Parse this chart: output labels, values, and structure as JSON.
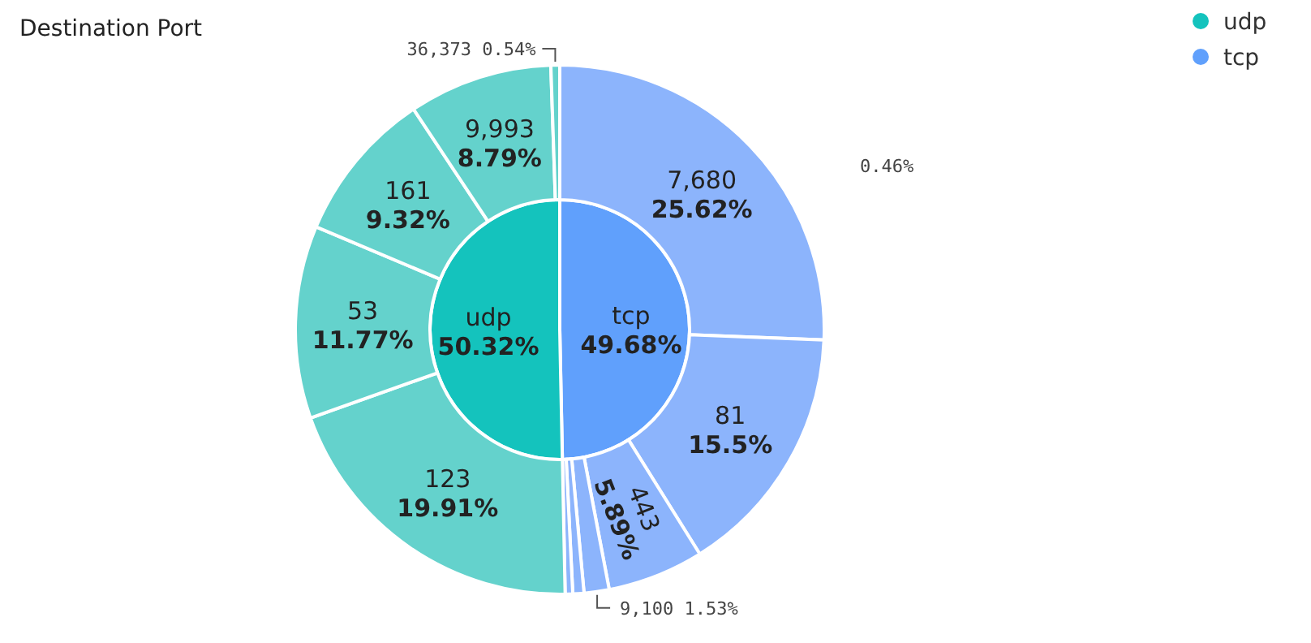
{
  "chart_data": [
    {
      "type": "pie",
      "title": "Destination Port",
      "categories": [
        "tcp",
        "udp"
      ],
      "values": [
        49.68,
        50.32
      ],
      "colors": [
        "#60a0fc",
        "#14c3bd"
      ],
      "value_labels": [
        "49.68%",
        "50.32%"
      ],
      "legend": "top right"
    },
    {
      "type": "donut",
      "categories": [
        "7,680",
        "81",
        "443",
        "9,100",
        null,
        null,
        "123",
        "53",
        "161",
        "9,993",
        "36,373"
      ],
      "values": [
        25.62,
        15.5,
        5.89,
        1.53,
        0.68,
        0.46,
        19.91,
        11.77,
        9.32,
        8.79,
        0.54
      ],
      "colors": [
        "#8cb4fc",
        "#8cb4fc",
        "#8cb4fc",
        "#8cb4fc",
        "#8cb4fc",
        "#8cb4fc",
        "#64d2cc",
        "#64d2cc",
        "#64d2cc",
        "#64d2cc",
        "#64d2cc"
      ],
      "value_labels": [
        "25.62%",
        "15.5%",
        "5.89%",
        "1.53%",
        null,
        null,
        "19.91%",
        "11.77%",
        "9.32%",
        "8.79%",
        "0.54%"
      ],
      "annotations": [
        "0.46%"
      ]
    }
  ]
}
